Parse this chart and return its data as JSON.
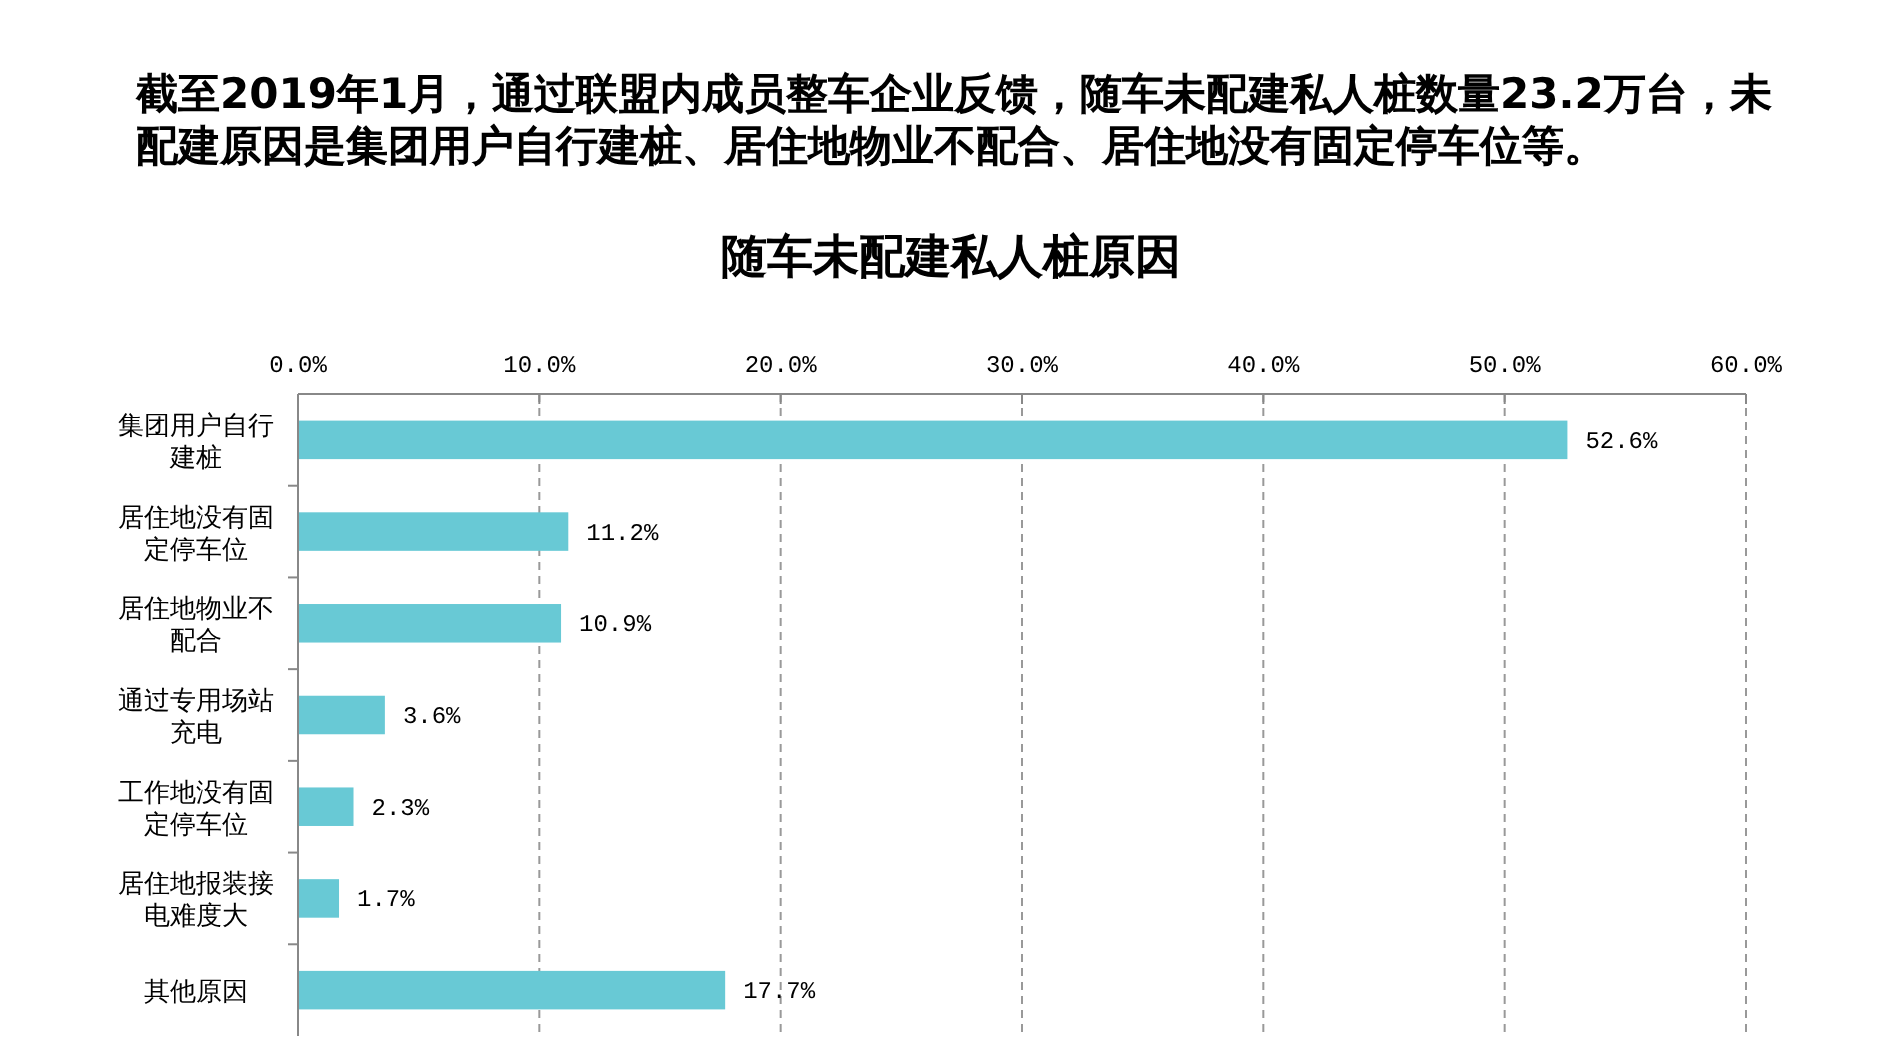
{
  "chart_data": {
    "type": "bar",
    "orientation": "horizontal",
    "title": "随车未配建私人桩原因",
    "subtitle": "截至2019年1月，通过联盟内成员整车企业反馈，随车未配建私人桩数量23.2万台，未配建原因是集团用户自行建桩、居住地物业不配合、居住地没有固定停车位等。",
    "categories": [
      "集团用户自行建桩",
      "居住地没有固定停车位",
      "居住地物业不配合",
      "通过专用场站充电",
      "工作地没有固定停车位",
      "居住地报装接电难度大",
      "其他原因"
    ],
    "values": [
      52.6,
      11.2,
      10.9,
      3.6,
      2.3,
      1.7,
      17.7
    ],
    "value_labels": [
      "52.6%",
      "11.2%",
      "10.9%",
      "3.6%",
      "2.3%",
      "1.7%",
      "17.7%"
    ],
    "color": "#68c9d5",
    "xlim": [
      0,
      60
    ],
    "xticks": [
      {
        "value": 0,
        "label": "0.0%"
      },
      {
        "value": 10,
        "label": "10.0%"
      },
      {
        "value": 20,
        "label": "20.0%"
      },
      {
        "value": 30,
        "label": "30.0%"
      },
      {
        "value": 40,
        "label": "40.0%"
      },
      {
        "value": 50,
        "label": "50.0%"
      },
      {
        "value": 60,
        "label": "60.0%"
      }
    ],
    "grid": "x"
  }
}
